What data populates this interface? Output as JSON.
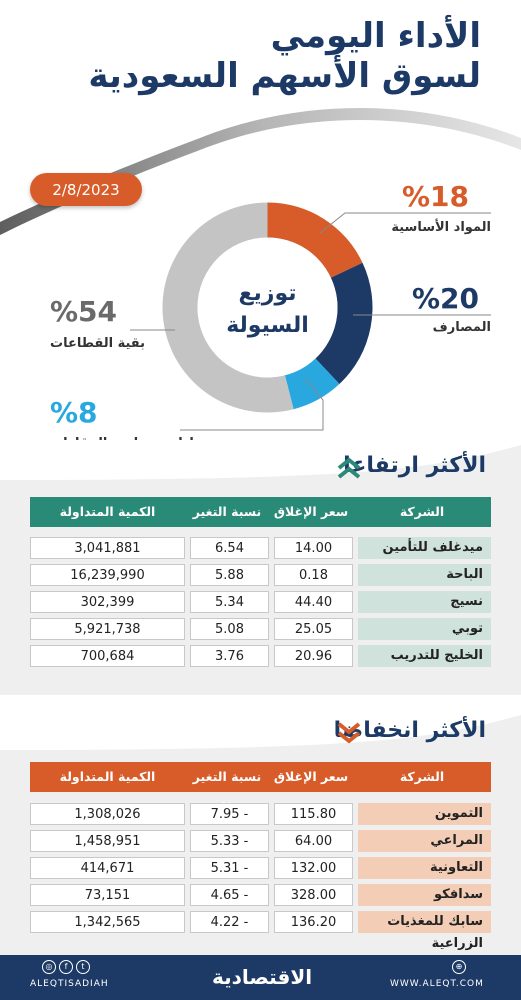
{
  "header": {
    "title_line1": "الأداء اليومي",
    "title_line2": "لسوق الأسهم السعودية",
    "date": "2/8/2023"
  },
  "liquidity": {
    "center_line1": "توزيع",
    "center_line2": "السيولة",
    "segments": [
      {
        "pct": "%18",
        "label": "المواد الأساسية",
        "value": 18,
        "color": "#d75c2a"
      },
      {
        "pct": "%20",
        "label": "المصارف",
        "value": 20,
        "color": "#1d3a66"
      },
      {
        "pct": "%8",
        "label": "إدارة وتطوير المقارات",
        "value": 8,
        "color": "#29a8e0"
      },
      {
        "pct": "%54",
        "label": "بقية القطاعات",
        "value": 54,
        "color": "#c4c4c4"
      }
    ]
  },
  "gainers": {
    "title": "الأكثر ارتفاعا",
    "columns": {
      "company": "الشركة",
      "close": "سعر الإغلاق",
      "change": "نسبة التغير %",
      "volume": "الكمية المتداولة"
    },
    "rows": [
      {
        "company": "ميدغلف للتأمين",
        "close": "14.00",
        "change": "6.54",
        "volume": "3,041,881"
      },
      {
        "company": "الباحة",
        "close": "0.18",
        "change": "5.88",
        "volume": "16,239,990"
      },
      {
        "company": "نسيج",
        "close": "44.40",
        "change": "5.34",
        "volume": "302,399"
      },
      {
        "company": "توبي",
        "close": "25.05",
        "change": "5.08",
        "volume": "5,921,738"
      },
      {
        "company": "الخليج للتدريب",
        "close": "20.96",
        "change": "3.76",
        "volume": "700,684"
      }
    ]
  },
  "losers": {
    "title": "الأكثر انخفاضا",
    "columns": {
      "company": "الشركة",
      "close": "سعر الإغلاق",
      "change": "نسبة التغير %",
      "volume": "الكمية المتداولة"
    },
    "rows": [
      {
        "company": "التموين",
        "close": "115.80",
        "change": "7.95 -",
        "volume": "1,308,026"
      },
      {
        "company": "المراعي",
        "close": "64.00",
        "change": "5.33 -",
        "volume": "1,458,951"
      },
      {
        "company": "التعاونية",
        "close": "132.00",
        "change": "5.31 -",
        "volume": "414,671"
      },
      {
        "company": "سدافكو",
        "close": "328.00",
        "change": "4.65 -",
        "volume": "73,151"
      },
      {
        "company": "سابك للمغذيات الزراعية",
        "close": "136.20",
        "change": "4.22 -",
        "volume": "1,342,565"
      }
    ]
  },
  "footer": {
    "handle": "ALEQTISADIAH",
    "logo": "الاقتصادية",
    "website": "WWW.ALEQT.COM"
  },
  "colors": {
    "navy": "#1d3a66",
    "orange": "#d75c2a",
    "teal": "#2a8a78",
    "teal_light": "#cfe3dc",
    "peach": "#f3cdb6",
    "sky": "#29a8e0",
    "grey": "#c4c4c4"
  }
}
